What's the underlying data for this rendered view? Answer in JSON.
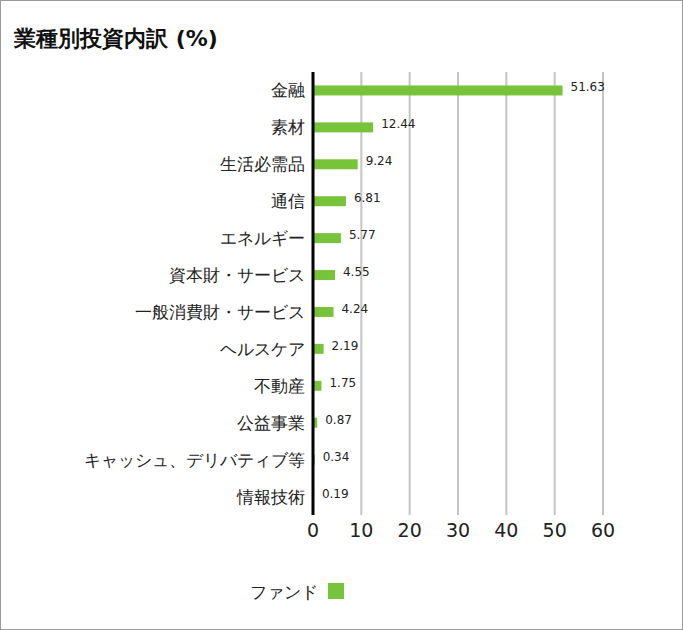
{
  "chart_data": {
    "type": "bar",
    "title": "業種別投資内訳 (%)",
    "orientation": "horizontal",
    "categories": [
      "金融",
      "素材",
      "生活必需品",
      "通信",
      "エネルギー",
      "資本財・サービス",
      "一般消費財・サービス",
      "ヘルスケア",
      "不動産",
      "公益事業",
      "キャッシュ、デリバティブ等",
      "情報技術"
    ],
    "series": [
      {
        "name": "ファンド",
        "color": "#77c43a",
        "values": [
          51.63,
          12.44,
          9.24,
          6.81,
          5.77,
          4.55,
          4.24,
          2.19,
          1.75,
          0.87,
          0.34,
          0.19
        ]
      }
    ],
    "xlim": [
      0,
      60
    ],
    "xticks": [
      0,
      10,
      20,
      30,
      40,
      50,
      60
    ],
    "grid": true,
    "data_labels": true,
    "legend": "bottom"
  }
}
